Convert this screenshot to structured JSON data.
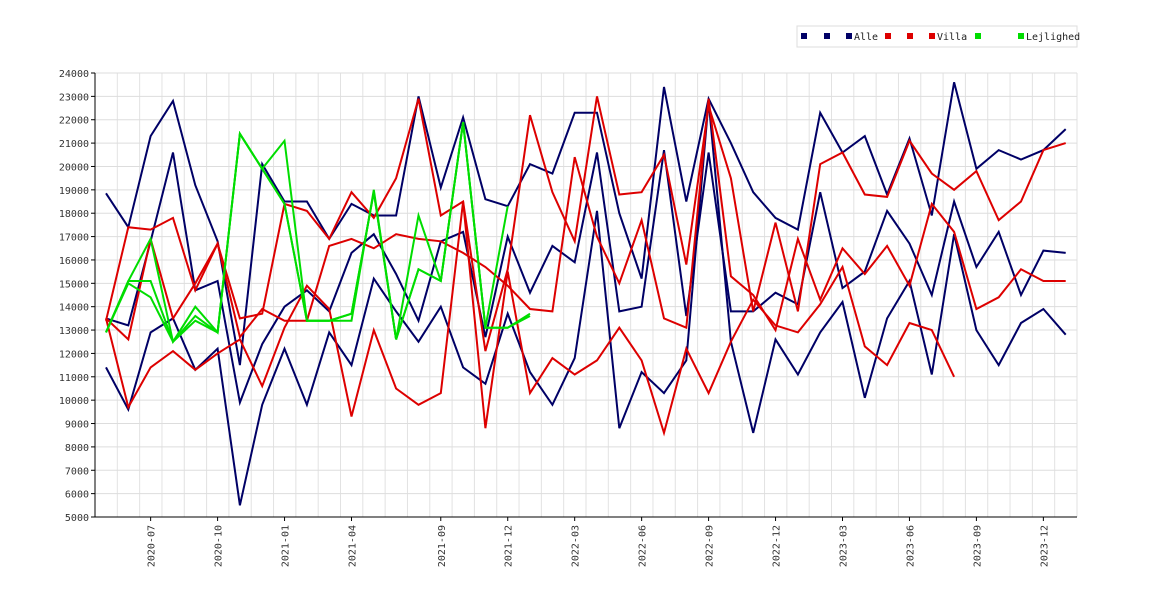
{
  "chart_data": {
    "type": "line",
    "title": "",
    "xlabel": "",
    "ylabel": "",
    "ylim": [
      5000,
      24000
    ],
    "y_ticks": [
      5000,
      6000,
      7000,
      8000,
      9000,
      10000,
      11000,
      12000,
      13000,
      14000,
      15000,
      16000,
      17000,
      18000,
      19000,
      20000,
      21000,
      22000,
      23000,
      24000
    ],
    "x_tick_labels": [
      "2020-07",
      "2020-10",
      "2021-01",
      "2021-04",
      "2021-09",
      "2021-12",
      "2022-03",
      "2022-06",
      "2022-09",
      "2022-12",
      "2023-03",
      "2023-06",
      "2023-09",
      "2023-12"
    ],
    "grid": true,
    "legend_position": "top-right",
    "legend_labels": [
      "Alle",
      "Villa",
      "Lejlighed"
    ],
    "colors": {
      "Alle": "#000066",
      "Villa": "#dd0000",
      "Lejlighed": "#00dd00"
    },
    "series": [
      {
        "name": "",
        "group": "Alle",
        "color": "#000066",
        "values": [
          18850,
          17400,
          21300,
          22800,
          19200,
          16800,
          11500,
          20100,
          18500,
          18500,
          16900,
          18400,
          17900,
          17900,
          23000,
          19100,
          22100,
          18600,
          18300,
          20100,
          19700,
          22300,
          22300,
          18000,
          15200,
          23400,
          18500,
          22900,
          21000,
          18900,
          17800,
          17300,
          22300,
          20600,
          21300,
          18800,
          21200,
          17900,
          23600,
          19900,
          20700,
          20300,
          20700,
          21600
        ]
      },
      {
        "name": "",
        "group": "Alle",
        "color": "#000066",
        "values": [
          13500,
          13200,
          16800,
          20600,
          14700,
          15100,
          9900,
          12400,
          14000,
          14700,
          13800,
          16300,
          17100,
          15400,
          13400,
          16800,
          17200,
          12700,
          17000,
          14600,
          16600,
          15900,
          20600,
          13800,
          14000,
          20700,
          13600,
          20600,
          13800,
          13800,
          14600,
          14100,
          18900,
          14800,
          15500,
          18100,
          16700,
          14500,
          18500,
          15700,
          17200,
          14500,
          16400,
          16300
        ]
      },
      {
        "name": "",
        "group": "Alle",
        "color": "#000066",
        "values": [
          11400,
          9600,
          12900,
          13500,
          11300,
          12200,
          5500,
          9800,
          12200,
          9800,
          12900,
          11500,
          15200,
          13800,
          12500,
          14000,
          11400,
          10700,
          13700,
          11200,
          9800,
          11800,
          18100,
          8800,
          11200,
          10300,
          11700,
          22800,
          12500,
          8600,
          12600,
          11100,
          12900,
          14200,
          10100,
          13500,
          15100,
          11100,
          17100,
          13000,
          11500,
          13300,
          13900,
          12800
        ]
      },
      {
        "name": "",
        "group": "Villa",
        "color": "#dd0000",
        "values": [
          13400,
          17400,
          17300,
          17800,
          14700,
          16700,
          13500,
          13700,
          18400,
          18100,
          16900,
          18900,
          17800,
          19500,
          22900,
          17900,
          18500,
          12100,
          15600,
          22200,
          18900,
          16800,
          23000,
          18800,
          18900,
          20500,
          15800,
          22600,
          19500,
          13800,
          17600,
          13800,
          20100,
          20600,
          18800,
          18700,
          21100,
          19700,
          19000,
          19800,
          17700,
          18500,
          20700,
          21000
        ]
      },
      {
        "name": "",
        "group": "Villa",
        "color": "#dd0000",
        "values": [
          13500,
          12600,
          16900,
          13500,
          15000,
          16700,
          12700,
          13900,
          13400,
          13400,
          16600,
          16900,
          16500,
          17100,
          16900,
          16800,
          16300,
          15700,
          14900,
          13900,
          13800,
          20400,
          17000,
          15000,
          17700,
          13500,
          13100,
          22900,
          15300,
          14500,
          13000,
          16900,
          14300,
          16500,
          15400,
          16600,
          14900,
          18400,
          17200,
          13900,
          14400,
          15600,
          15100,
          15100
        ]
      },
      {
        "name": "",
        "group": "Villa",
        "color": "#dd0000",
        "values": [
          13500,
          9700,
          11400,
          12100,
          11300,
          12000,
          12600,
          10600,
          13100,
          14900,
          13900,
          9300,
          13000,
          10500,
          9800,
          10300,
          18500,
          8800,
          15500,
          10300,
          11800,
          11100,
          11700,
          13100,
          11700,
          8600,
          12200,
          10300,
          12500,
          14300,
          13200,
          12900,
          14100,
          15700,
          12300,
          11500,
          13300,
          13000,
          11000
        ]
      },
      {
        "name": "",
        "group": "Lejlighed",
        "color": "#00dd00",
        "values": [
          12900,
          15100,
          16900,
          12500,
          13400,
          12900,
          21400,
          19900,
          21100,
          13400,
          13400,
          13400,
          19000,
          12600,
          17900,
          15100,
          21900,
          13100,
          18300
        ]
      },
      {
        "name": "",
        "group": "Lejlighed",
        "color": "#00dd00",
        "values": [
          12900,
          15100,
          15100,
          12500,
          14000,
          12900,
          21400,
          19900,
          18400,
          13400,
          13400,
          13700,
          18900,
          12600,
          15600,
          15100,
          21900,
          13100,
          13100,
          13700
        ]
      },
      {
        "name": "",
        "group": "Lejlighed",
        "color": "#00dd00",
        "values": [
          12900,
          15000,
          14400,
          12500,
          13600,
          12900,
          21400,
          19900,
          18400,
          13400,
          13400,
          13700,
          18900,
          12600,
          15600,
          15100,
          21900,
          13100,
          13100,
          13600
        ]
      }
    ]
  }
}
